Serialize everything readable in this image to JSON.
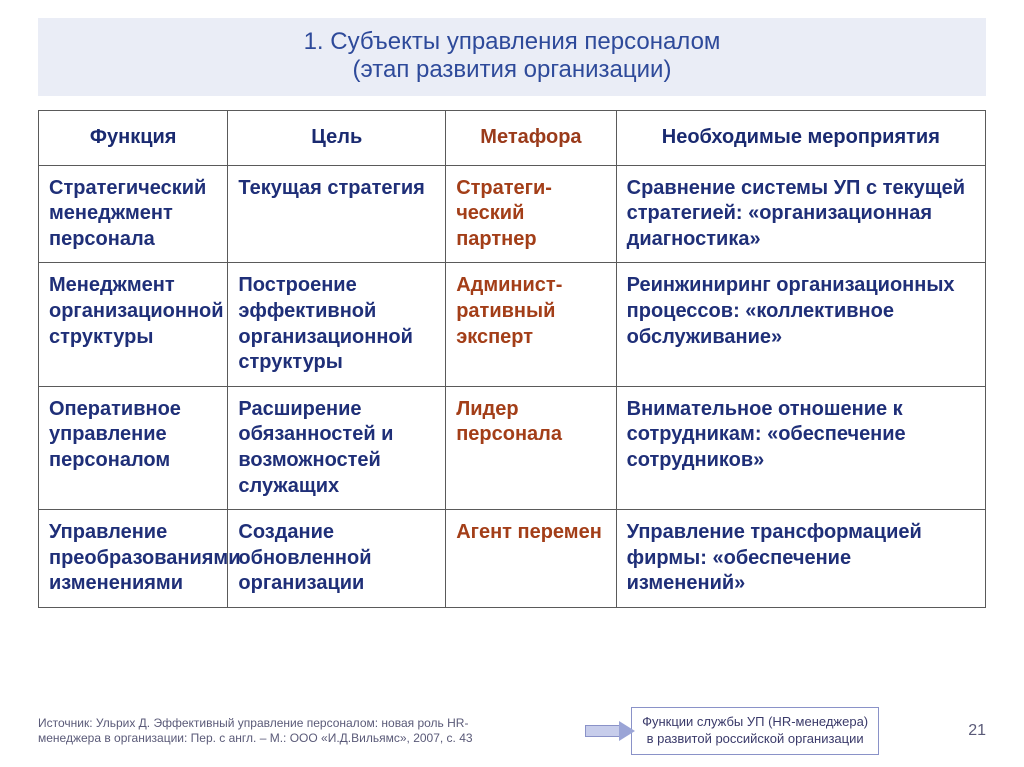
{
  "title": {
    "line1": "1. Субъекты управления персоналом",
    "line2": "(этап развития организации)"
  },
  "columns": {
    "func": "Функция",
    "goal": "Цель",
    "meta": "Метафора",
    "act": "Необходимые мероприятия"
  },
  "rows": [
    {
      "func": "Стратегический менеджмент персонала",
      "goal": "Текущая стратегия",
      "meta": "Стратеги-ческий партнер",
      "act": "Сравнение системы УП с текущей стратегией: «организационная диагностика»"
    },
    {
      "func": "Менеджмент организационной структуры",
      "goal": "Построение эффективной организационной структуры",
      "meta": "Админист-ративный эксперт",
      "act": "Реинжиниринг организационных процессов: «коллективное обслуживание»"
    },
    {
      "func": "Оперативное управление персоналом",
      "goal": "Расширение обязанностей и возможностей служащих",
      "meta": "Лидер персонала",
      "act": "Внимательное отношение к сотрудникам: «обеспечение сотрудников»"
    },
    {
      "func": "Управление преобразованиями изменениями",
      "goal": "Создание обновленной организации",
      "meta": "Агент перемен",
      "act": "Управление трансформацией фирмы: «обеспечение изменений»"
    }
  ],
  "source": "Источник: Ульрих Д. Эффективный управление персоналом: новая роль HR-менеджера в организации: Пер. с англ. – М.: ООО «И.Д.Вильямс», 2007, с. 43",
  "callout": {
    "line1": "Функции службы УП (HR-менеджера)",
    "line2": "в развитой российской организации"
  },
  "page_number": "21",
  "style": {
    "text_color_blue": "#1f2f78",
    "text_color_brown": "#a33e18",
    "title_bg": "#eaedf6",
    "border_color": "#5a5a5a",
    "font_size_title": 24,
    "font_size_cell": 20,
    "font_size_source": 12,
    "font_size_callout": 13
  }
}
